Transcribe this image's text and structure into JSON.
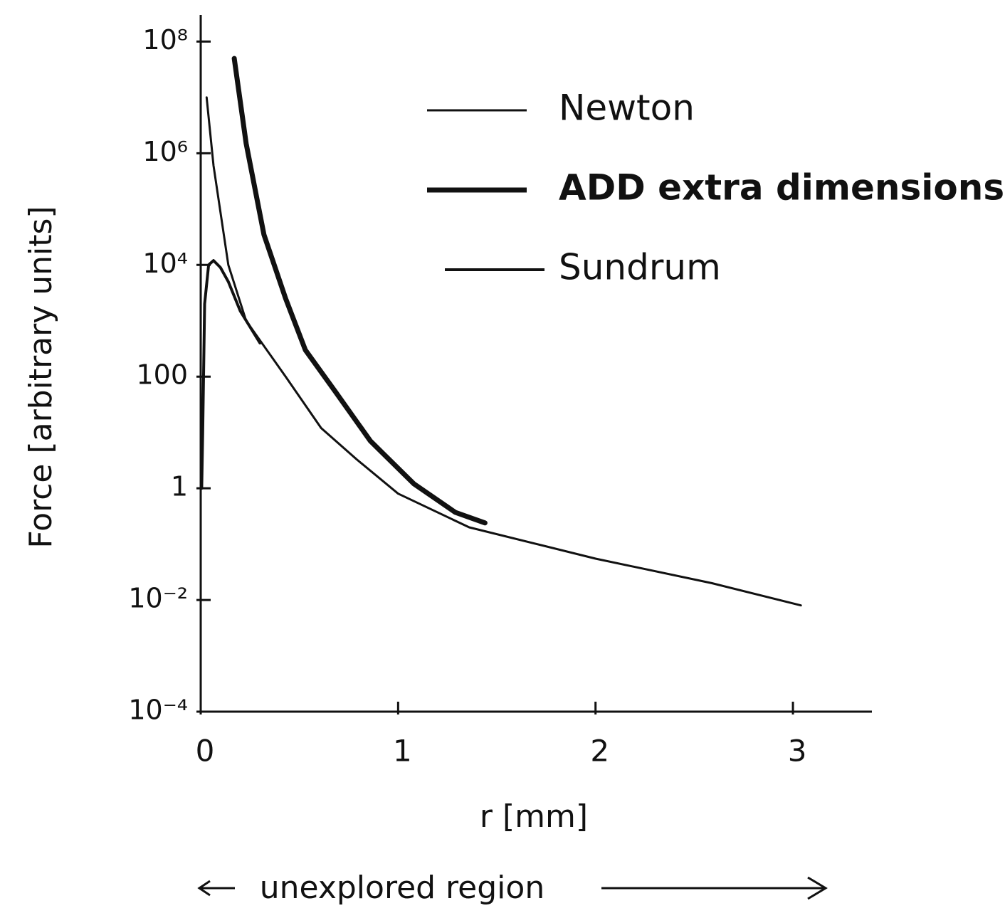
{
  "chart_data": {
    "type": "line",
    "title": null,
    "x_label": "r [mm]",
    "y_label": "Force [arbitrary units]",
    "annotation": "unexplored region",
    "log_y": true,
    "grid": false,
    "legend": "upper right",
    "xlim": [
      0,
      3.4
    ],
    "ylim": [
      0.0001,
      300000000
    ],
    "xticks": [
      0,
      1,
      2,
      3
    ],
    "yticks": [
      {
        "value": 0.0001,
        "label": "10⁻⁴"
      },
      {
        "value": 0.01,
        "label": "10⁻²"
      },
      1,
      100,
      {
        "value": 10000,
        "label": "10⁴"
      },
      {
        "value": 1000000,
        "label": "10⁶"
      },
      {
        "value": 100000000,
        "label": "10⁸"
      }
    ],
    "series": [
      {
        "name": "Newton",
        "color": "#111111",
        "linewidth": 3,
        "x": [
          0.03,
          0.065,
          0.14,
          0.23,
          0.43,
          0.61,
          0.79,
          1.0,
          1.36,
          2.0,
          2.59,
          3.04
        ],
        "values": [
          10000000,
          600000,
          10000,
          1000,
          100,
          12,
          3.3,
          0.8,
          0.2,
          0.055,
          0.02,
          0.008
        ]
      },
      {
        "name": "ADD extra dimensions",
        "color": "#111111",
        "linewidth": 7,
        "x": [
          0.17,
          0.23,
          0.32,
          0.43,
          0.53,
          0.68,
          0.86,
          1.08,
          1.29,
          1.44
        ],
        "values": [
          50000000,
          1500000,
          35000,
          2500,
          300,
          55,
          7,
          1.2,
          0.37,
          0.24
        ]
      },
      {
        "name": "Sundrum",
        "color": "#111111",
        "linewidth": 4,
        "x": [
          0.005,
          0.01,
          0.02,
          0.04,
          0.065,
          0.1,
          0.14,
          0.2,
          0.3
        ],
        "values": [
          1,
          10,
          2000,
          10000,
          12000,
          9000,
          5000,
          1500,
          400
        ]
      }
    ]
  }
}
